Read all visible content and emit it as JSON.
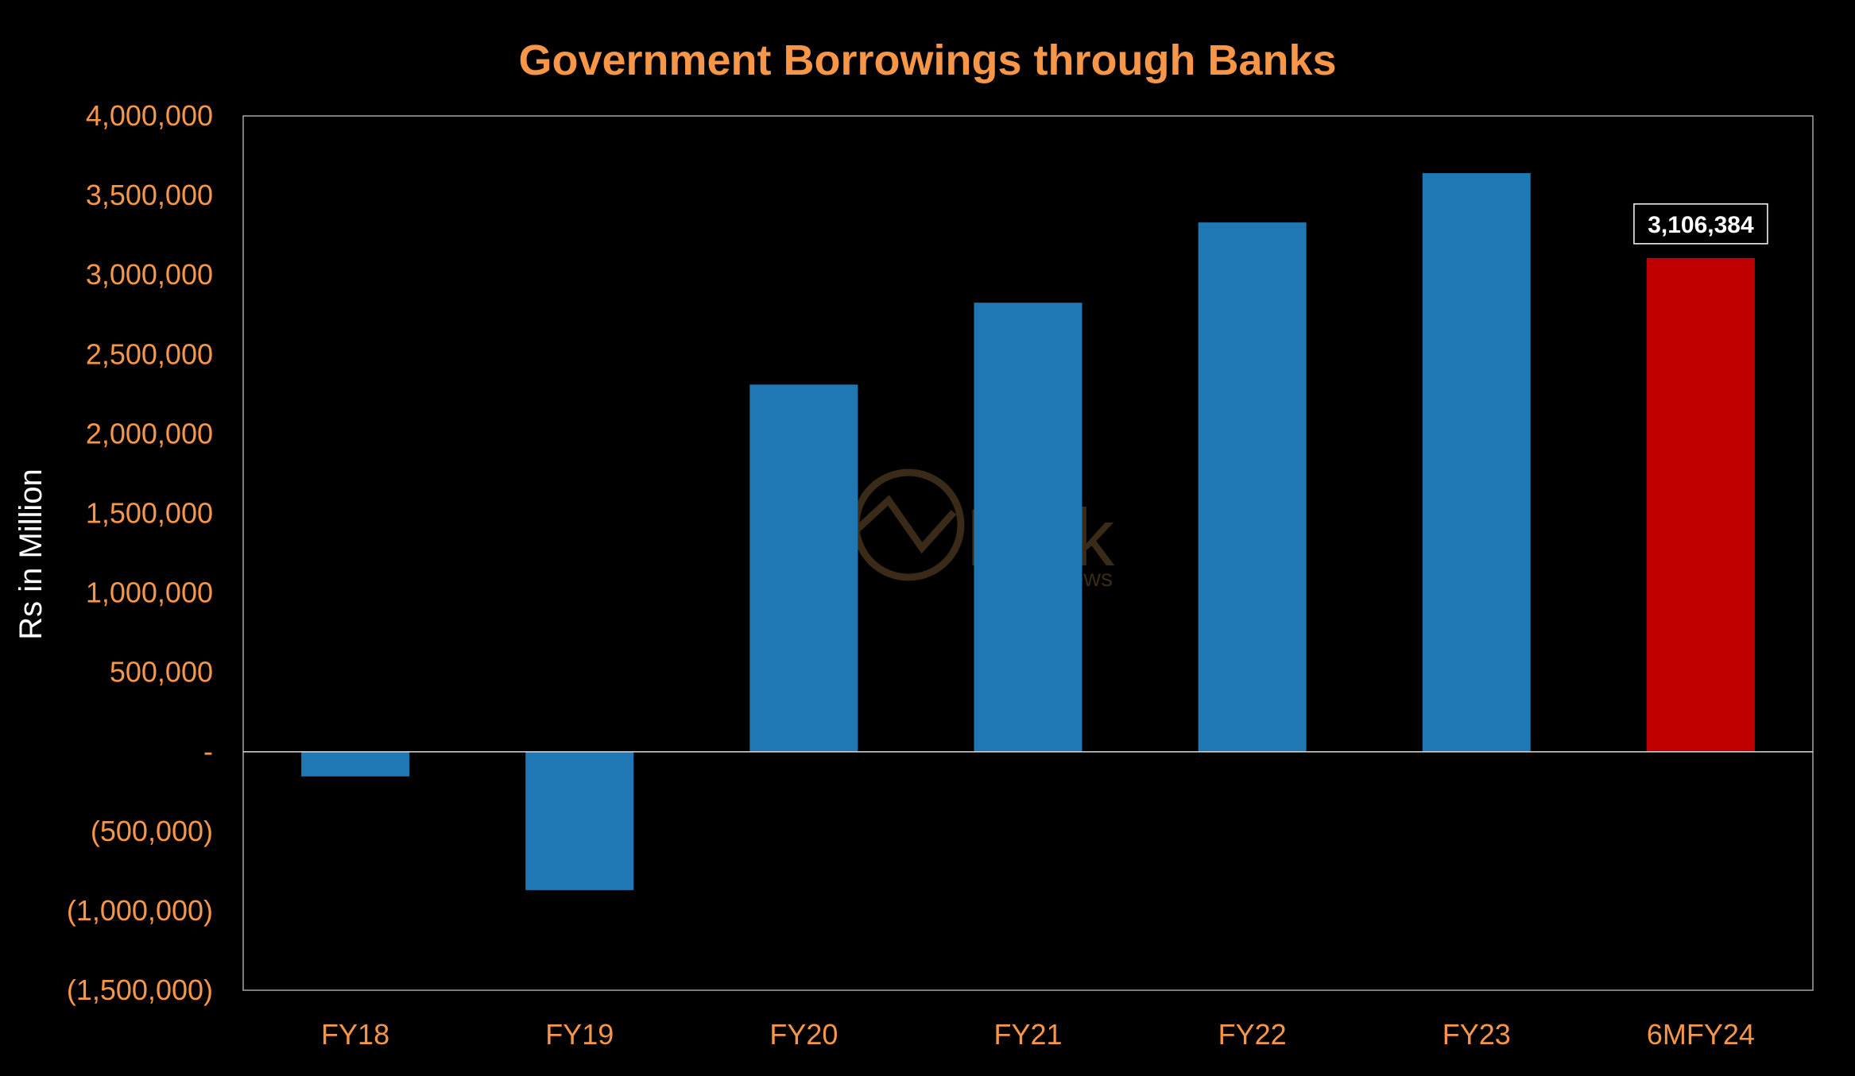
{
  "chart_data": {
    "type": "bar",
    "title": "Government Borrowings through Banks",
    "xlabel": "",
    "ylabel": "Rs in Million",
    "categories": [
      "FY18",
      "FY19",
      "FY20",
      "FY21",
      "FY22",
      "FY23",
      "6MFY24"
    ],
    "values": [
      -155000,
      -870000,
      2310000,
      2825000,
      3330000,
      3640000,
      3106384
    ],
    "ylim": [
      -1500000,
      4000000
    ],
    "yticks": [
      4000000,
      3500000,
      3000000,
      2500000,
      2000000,
      1500000,
      1000000,
      500000,
      0,
      -500000,
      -1000000,
      -1500000
    ],
    "ytick_labels": [
      "4,000,000",
      "3,500,000",
      "3,000,000",
      "2,500,000",
      "2,000,000",
      "1,500,000",
      "1,000,000",
      "500,000",
      "-",
      "(500,000)",
      "(1,000,000)",
      "(1,500,000)"
    ],
    "data_labels": [
      {
        "category": "6MFY24",
        "text": "3,106,384"
      }
    ],
    "grid": false,
    "legend": "none"
  },
  "watermark": {
    "text": "Link",
    "subtext": "News"
  },
  "colors": {
    "background": "#000000",
    "title": "#F79646",
    "tick_labels": "#F79646",
    "axis_label": "#FFFFFF",
    "bar_default": "#1F78B4",
    "bar_highlight": "#C00000",
    "axis_line": "#D9D9D9",
    "plot_border": "#A6A6A6",
    "data_label_text": "#FFFFFF",
    "data_label_border": "#FFFFFF",
    "watermark": "#3A2A18"
  },
  "highlight_category": "6MFY24"
}
